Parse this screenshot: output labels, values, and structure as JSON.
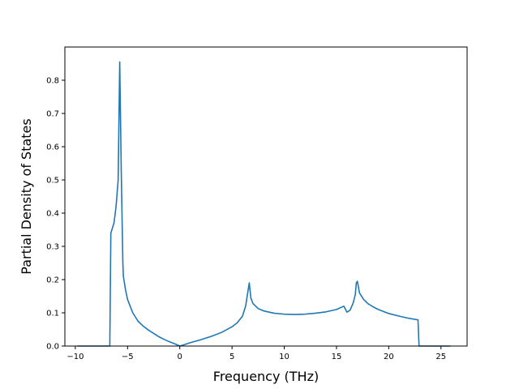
{
  "chart_data": {
    "type": "line",
    "xlabel": "Frequency (THz)",
    "ylabel": "Partial Density of States",
    "xlim": [
      -11.0,
      27.5
    ],
    "ylim": [
      0.0,
      0.9
    ],
    "grid": false,
    "line_color": "#1f77b4",
    "x_ticks": [
      {
        "value": -10,
        "label": "−10"
      },
      {
        "value": -5,
        "label": "−5"
      },
      {
        "value": 0,
        "label": "0"
      },
      {
        "value": 5,
        "label": "5"
      },
      {
        "value": 10,
        "label": "10"
      },
      {
        "value": 15,
        "label": "15"
      },
      {
        "value": 20,
        "label": "20"
      },
      {
        "value": 25,
        "label": "25"
      }
    ],
    "y_ticks": [
      {
        "value": 0.0,
        "label": "0.0"
      },
      {
        "value": 0.1,
        "label": "0.1"
      },
      {
        "value": 0.2,
        "label": "0.2"
      },
      {
        "value": 0.3,
        "label": "0.3"
      },
      {
        "value": 0.4,
        "label": "0.4"
      },
      {
        "value": 0.5,
        "label": "0.5"
      },
      {
        "value": 0.6,
        "label": "0.6"
      },
      {
        "value": 0.7,
        "label": "0.7"
      },
      {
        "value": 0.8,
        "label": "0.8"
      }
    ],
    "series": [
      {
        "x": [
          -9.8,
          -7.0,
          -6.7,
          -6.6,
          -6.3,
          -6.1,
          -5.9,
          -5.75,
          -5.6,
          -5.45,
          -5.4,
          -5.2,
          -5.0,
          -4.5,
          -4.0,
          -3.5,
          -3.0,
          -2.5,
          -2.0,
          -1.5,
          -1.0,
          -0.5,
          0.0,
          0.5,
          1.0,
          2.0,
          3.0,
          4.0,
          5.0,
          5.5,
          6.0,
          6.3,
          6.5,
          6.65,
          6.8,
          7.0,
          7.5,
          8.0,
          9.0,
          10.0,
          11.0,
          12.0,
          13.0,
          14.0,
          15.0,
          15.7,
          16.0,
          16.3,
          16.6,
          16.8,
          16.9,
          17.0,
          17.2,
          17.6,
          18.0,
          18.5,
          19.0,
          20.0,
          21.0,
          22.0,
          22.8,
          22.9,
          25.9
        ],
        "y": [
          0.0,
          0.0,
          0.0,
          0.34,
          0.37,
          0.42,
          0.5,
          0.855,
          0.52,
          0.25,
          0.21,
          0.17,
          0.14,
          0.1,
          0.075,
          0.06,
          0.048,
          0.038,
          0.028,
          0.02,
          0.013,
          0.007,
          0.0,
          0.005,
          0.01,
          0.019,
          0.029,
          0.041,
          0.058,
          0.07,
          0.09,
          0.12,
          0.16,
          0.19,
          0.145,
          0.128,
          0.113,
          0.106,
          0.099,
          0.096,
          0.095,
          0.096,
          0.099,
          0.103,
          0.11,
          0.12,
          0.102,
          0.108,
          0.13,
          0.155,
          0.19,
          0.195,
          0.16,
          0.14,
          0.128,
          0.118,
          0.11,
          0.098,
          0.09,
          0.083,
          0.079,
          0.0,
          0.0
        ]
      }
    ]
  }
}
